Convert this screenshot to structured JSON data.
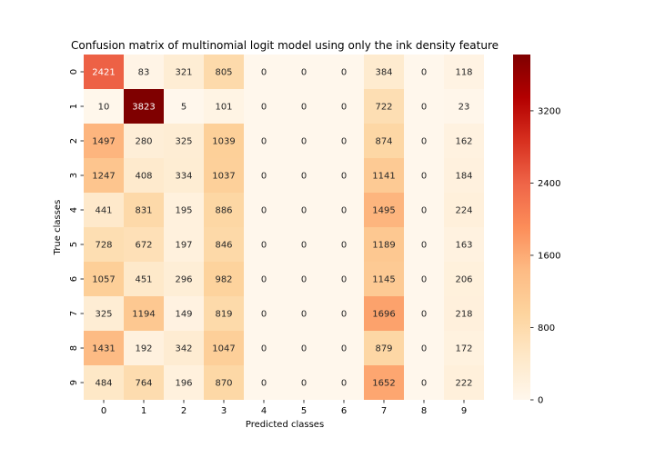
{
  "chart_data": {
    "type": "heatmap",
    "title": "Confusion matrix of multinomial logit model using only the ink density feature",
    "xlabel": "Predicted classes",
    "ylabel": "True classes",
    "x_categories": [
      "0",
      "1",
      "2",
      "3",
      "4",
      "5",
      "6",
      "7",
      "8",
      "9"
    ],
    "y_categories": [
      "0",
      "1",
      "2",
      "3",
      "4",
      "5",
      "6",
      "7",
      "8",
      "9"
    ],
    "values": [
      [
        2421,
        83,
        321,
        805,
        0,
        0,
        0,
        384,
        0,
        118
      ],
      [
        10,
        3823,
        5,
        101,
        0,
        0,
        0,
        722,
        0,
        23
      ],
      [
        1497,
        280,
        325,
        1039,
        0,
        0,
        0,
        874,
        0,
        162
      ],
      [
        1247,
        408,
        334,
        1037,
        0,
        0,
        0,
        1141,
        0,
        184
      ],
      [
        441,
        831,
        195,
        886,
        0,
        0,
        0,
        1495,
        0,
        224
      ],
      [
        728,
        672,
        197,
        846,
        0,
        0,
        0,
        1189,
        0,
        163
      ],
      [
        1057,
        451,
        296,
        982,
        0,
        0,
        0,
        1145,
        0,
        206
      ],
      [
        325,
        1194,
        149,
        819,
        0,
        0,
        0,
        1696,
        0,
        218
      ],
      [
        1431,
        192,
        342,
        1047,
        0,
        0,
        0,
        879,
        0,
        172
      ],
      [
        484,
        764,
        196,
        870,
        0,
        0,
        0,
        1652,
        0,
        222
      ]
    ],
    "colormap": "OrRd",
    "colorbar": {
      "range": [
        0,
        3823
      ],
      "ticks": [
        0,
        800,
        1600,
        2400,
        3200
      ],
      "tick_labels": [
        "0",
        "800",
        "1600",
        "2400",
        "3200"
      ]
    },
    "grid": false,
    "legend": "colorbar-right"
  }
}
